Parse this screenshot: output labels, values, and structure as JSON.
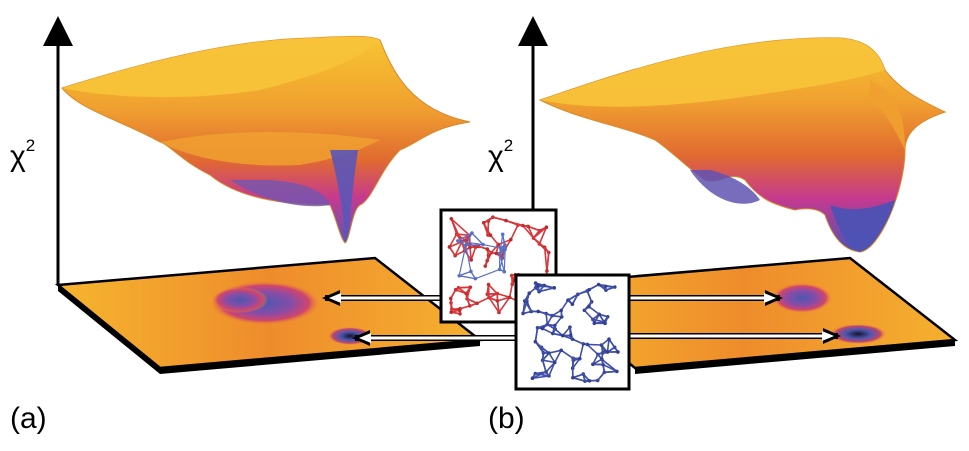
{
  "panels": [
    {
      "label": "(a)",
      "axis_label": "χ",
      "axis_sup": "2"
    },
    {
      "label": "(b)",
      "axis_label": "χ",
      "axis_sup": "2"
    }
  ],
  "colors": {
    "surface_high": "#f7c531",
    "surface_mid": "#e8762a",
    "surface_low": "#c63a8e",
    "surface_min": "#5a57b8",
    "structure_red": "#d8383b",
    "structure_blue": "#4050a8"
  },
  "icons": {
    "red_structure_inset": "molecular-network-red",
    "blue_structure_inset": "molecular-network-blue"
  }
}
